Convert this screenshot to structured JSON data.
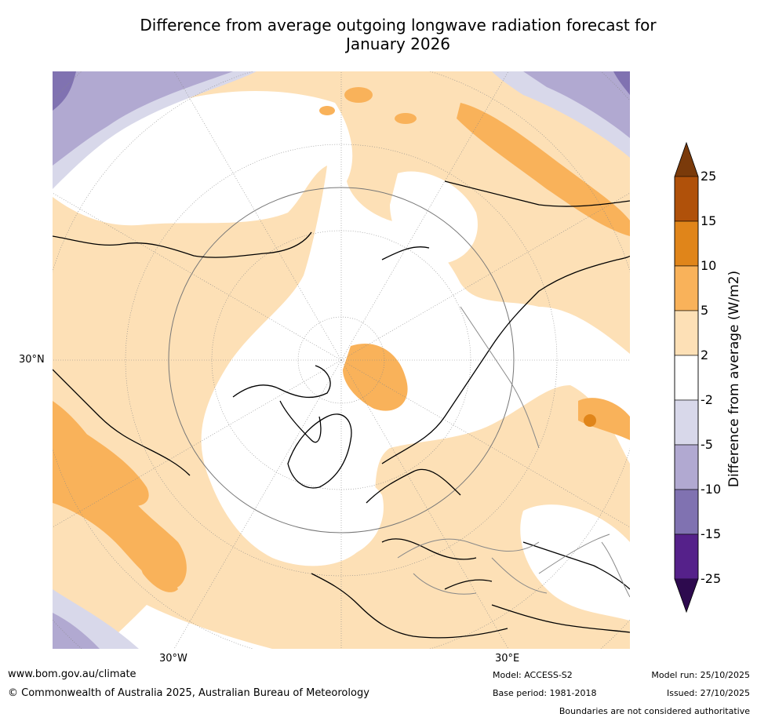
{
  "title_line1": "Difference from average outgoing longwave radiation forecast for",
  "title_line2": "January 2026",
  "map": {
    "lat_label": "30°N",
    "lon_labels": [
      "30°W",
      "30°E"
    ]
  },
  "legend": {
    "title": "Difference from average (W/m2)",
    "ticks": [
      "25",
      "15",
      "10",
      "5",
      "2",
      "-2",
      "-5",
      "-10",
      "-15",
      "-25"
    ],
    "colors": [
      "#7a3a0a",
      "#b0510a",
      "#e0851a",
      "#f9b25a",
      "#fde0b6",
      "#ffffff",
      "#d8d8ea",
      "#b1a9d1",
      "#8072b1",
      "#55218a",
      "#2d0a4e"
    ]
  },
  "footer": {
    "url": "www.bom.gov.au/climate",
    "copyright": "© Commonwealth of Australia 2025, Australian Bureau of Meteorology",
    "model": "Model: ACCESS-S2",
    "base_period": "Base period: 1981-2018",
    "model_run": "Model run: 25/10/2025",
    "issued": "Issued: 27/10/2025",
    "disclaimer": "Boundaries are not considered authoritative"
  }
}
